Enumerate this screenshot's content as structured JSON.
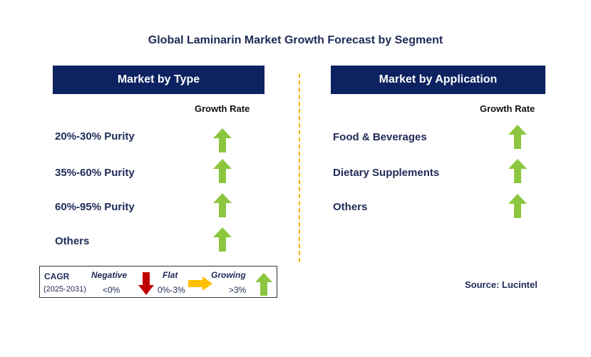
{
  "title": "Global Laminarin Market Growth Forecast by Segment",
  "left_panel": {
    "header": "Market by Type",
    "growth_label": "Growth Rate",
    "rows": [
      {
        "label": "20%-30% Purity",
        "trend": "growing"
      },
      {
        "label": "35%-60% Purity",
        "trend": "growing"
      },
      {
        "label": "60%-95% Purity",
        "trend": "growing"
      },
      {
        "label": "Others",
        "trend": "growing"
      }
    ]
  },
  "right_panel": {
    "header": "Market by Application",
    "growth_label": "Growth Rate",
    "rows": [
      {
        "label": "Food & Beverages",
        "trend": "growing"
      },
      {
        "label": "Dietary Supplements",
        "trend": "growing"
      },
      {
        "label": "Others",
        "trend": "growing"
      }
    ]
  },
  "legend": {
    "cagr_label": "CAGR",
    "period": "(2025-2031)",
    "negative_label": "Negative",
    "negative_range": "<0%",
    "flat_label": "Flat",
    "flat_range": "0%-3%",
    "growing_label": "Growing",
    "growing_range": ">3%"
  },
  "source": "Source: Lucintel",
  "colors": {
    "header_bg": "#0d2260",
    "growing_arrow": "#8cc63f",
    "negative_arrow": "#c00000",
    "flat_arrow": "#ffc000",
    "divider": "#f2b400"
  },
  "icons": {
    "growing": "up-arrow-icon",
    "negative": "down-arrow-icon",
    "flat": "right-arrow-icon"
  }
}
